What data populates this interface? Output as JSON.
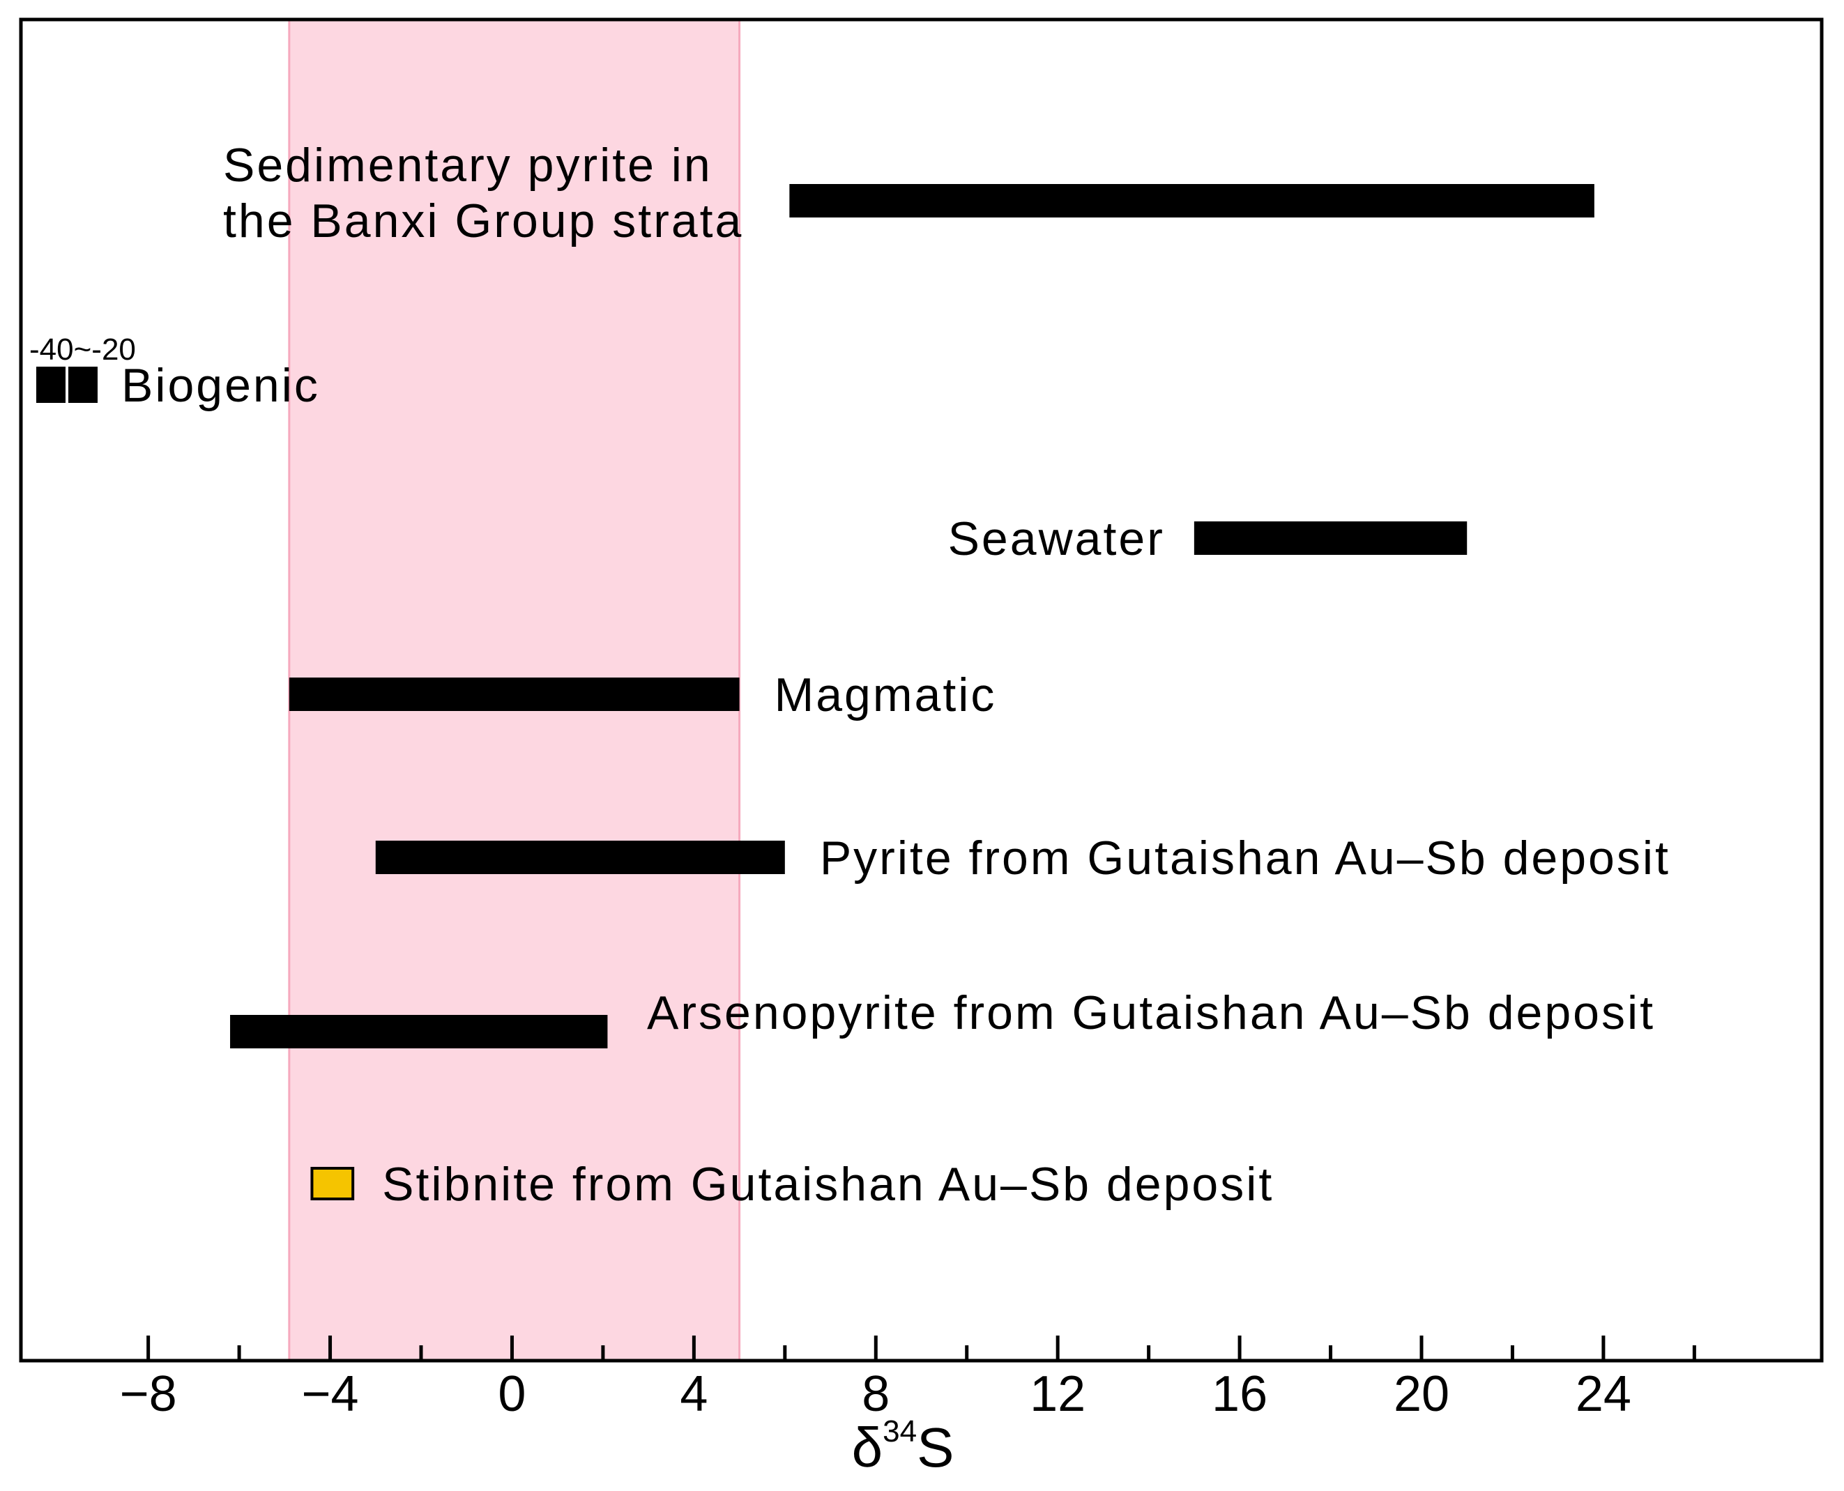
{
  "chart_data": {
    "type": "range-bar",
    "xlabel": "δ34S",
    "xlabel_parts": {
      "base": "δ",
      "sup": "34",
      "tail": "S"
    },
    "xlim": [
      -10.8,
      28.8
    ],
    "xticks_major": [
      -8,
      -4,
      0,
      4,
      8,
      12,
      16,
      20,
      24
    ],
    "xtick_labels": [
      "−8",
      "−4",
      "0",
      "4",
      "8",
      "12",
      "16",
      "20",
      "24"
    ],
    "xticks_minor": [
      -6,
      -2,
      2,
      6,
      10,
      14,
      18,
      22,
      26
    ],
    "shaded_band": {
      "from": -4.9,
      "to": 5.0,
      "color": "#fdd7e1",
      "edge": "#f6a9bd"
    },
    "series": [
      {
        "name": "Sedimentary pyrite in the Banxi Group strata",
        "label_lines": [
          "Sedimentary pyrite in",
          "the Banxi Group strata"
        ],
        "from": 6.1,
        "to": 23.8,
        "row": 1,
        "color": "#000000"
      },
      {
        "name": "Biogenic",
        "from": -40,
        "to": -20,
        "row": 2,
        "color": "#000000",
        "off_scale": true,
        "range_label": "-40~-20"
      },
      {
        "name": "Seawater",
        "from": 15.0,
        "to": 21.0,
        "row": 3,
        "color": "#000000"
      },
      {
        "name": "Magmatic",
        "from": -4.9,
        "to": 5.0,
        "row": 4,
        "color": "#000000"
      },
      {
        "name": "Pyrite from Gutaishan Au–Sb deposit",
        "from": -3.0,
        "to": 6.0,
        "row": 5,
        "color": "#000000"
      },
      {
        "name": "Arsenopyrite from Gutaishan Au–Sb deposit",
        "from": -6.2,
        "to": 2.1,
        "row": 6,
        "color": "#000000"
      },
      {
        "name": "Stibnite from Gutaishan Au–Sb deposit",
        "from": -4.4,
        "to": -3.5,
        "row": 7,
        "color": "#f5c400",
        "marker": "box"
      }
    ]
  }
}
